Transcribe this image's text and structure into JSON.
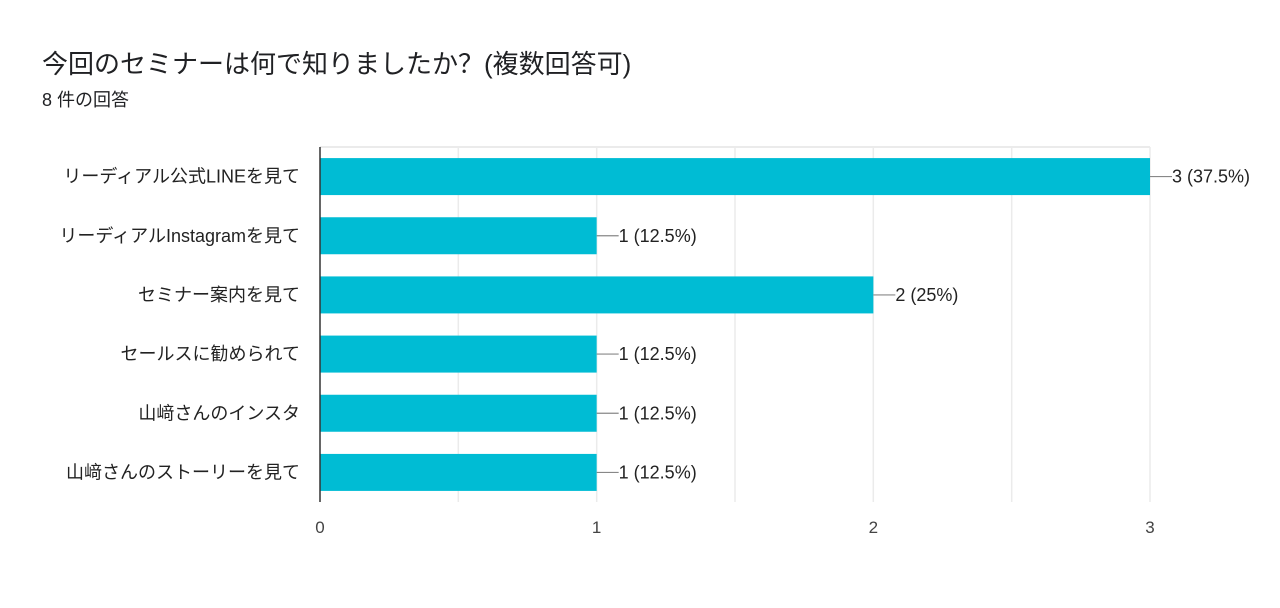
{
  "chart_data": {
    "type": "bar",
    "orientation": "horizontal",
    "title": "今回のセミナーは何で知りましたか？(複数回答可)",
    "subtitle": "8 件の回答",
    "categories": [
      "リーディアル公式LINEを見て",
      "リーディアルInstagramを見て",
      "セミナー案内を見て",
      "セールスに勧められて",
      "山﨑さんのインスタ",
      "山﨑さんのストーリーを見て"
    ],
    "values": [
      3,
      1,
      2,
      1,
      1,
      1
    ],
    "data_labels": [
      "3 (37.5%)",
      "1 (12.5%)",
      "2 (25%)",
      "1 (12.5%)",
      "1 (12.5%)",
      "1 (12.5%)"
    ],
    "xlim": [
      0,
      3
    ],
    "xticks": [
      "0",
      "1",
      "2",
      "3"
    ],
    "grid": true,
    "xlabel": "",
    "ylabel": "",
    "bar_color": "#00BCD4"
  }
}
